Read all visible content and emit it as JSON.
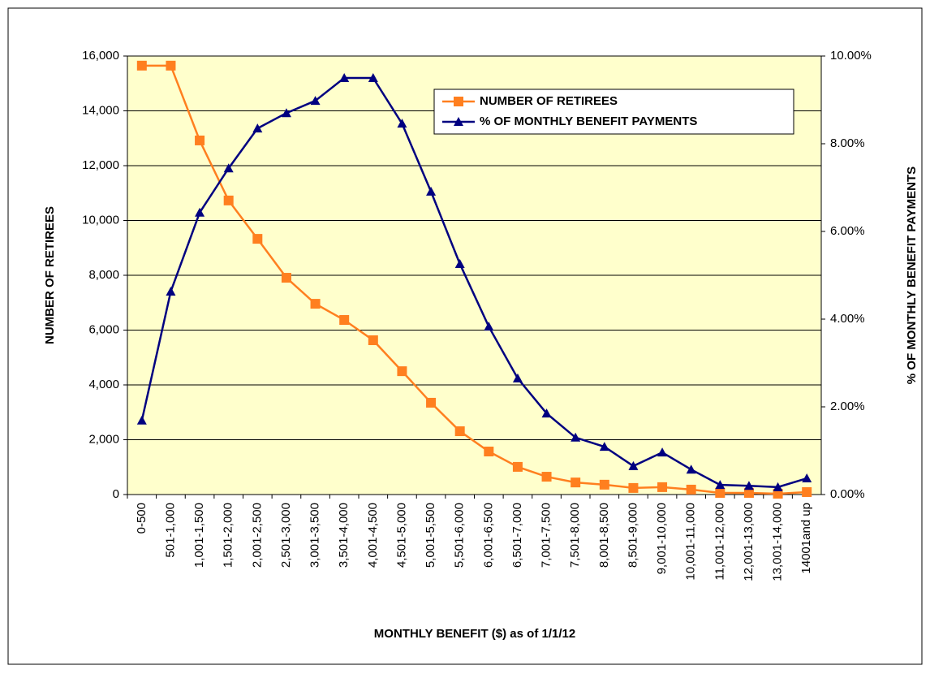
{
  "chart_data": {
    "type": "line",
    "x_label": "MONTHLY BENEFIT ($) as of 1/1/12",
    "y_label": "NUMBER OF RETIREES",
    "y2_label": "% OF MONTHLY BENEFIT PAYMENTS",
    "categories": [
      "0-500",
      "501-1,000",
      "1,001-1,500",
      "1,501-2,000",
      "2,001-2,500",
      "2,501-3,000",
      "3,001-3,500",
      "3,501-4,000",
      "4,001-4,500",
      "4,501-5,000",
      "5,001-5,500",
      "5,501-6,000",
      "6,001-6,500",
      "6,501-7,000",
      "7,001-7,500",
      "7,501-8,000",
      "8,001-8,500",
      "8,501-9,000",
      "9,001-10,000",
      "10,001-11,000",
      "11,001-12,000",
      "12,001-13,000",
      "13,001-14,000",
      "14001and up"
    ],
    "series": [
      {
        "name": "NUMBER OF RETIREES",
        "color": "#ff7f1f",
        "marker": "square",
        "values": [
          15650,
          15650,
          12920,
          10730,
          9330,
          7910,
          6960,
          6370,
          5630,
          4500,
          3350,
          2310,
          1570,
          1010,
          650,
          440,
          360,
          240,
          270,
          180,
          60,
          60,
          30,
          90
        ]
      },
      {
        "name": "% OF MONTHLY BENEFIT PAYMENTS",
        "color": "#000080",
        "marker": "triangle",
        "axis": "y2",
        "values": [
          1.69,
          4.63,
          6.43,
          7.44,
          8.35,
          8.7,
          8.98,
          9.5,
          9.5,
          8.46,
          6.91,
          5.26,
          3.83,
          2.65,
          1.85,
          1.3,
          1.09,
          0.65,
          0.96,
          0.57,
          0.22,
          0.2,
          0.17,
          0.37
        ]
      }
    ],
    "ylim": [
      0,
      16000
    ],
    "yticks": [
      0,
      {
        "value": 2000,
        "label": "2,000"
      },
      {
        "value": 4000,
        "label": "4,000"
      },
      {
        "value": 6000,
        "label": "6,000"
      },
      {
        "value": 8000,
        "label": "8,000"
      },
      {
        "value": 10000,
        "label": "10,000"
      },
      {
        "value": 12000,
        "label": "12,000"
      },
      {
        "value": 14000,
        "label": "14,000"
      },
      {
        "value": 16000,
        "label": "16,000"
      }
    ],
    "y2lim": [
      0,
      10
    ],
    "y2ticks": [
      {
        "value": 0,
        "label": "0.00%"
      },
      {
        "value": 2,
        "label": "2.00%"
      },
      {
        "value": 4,
        "label": "4.00%"
      },
      {
        "value": 6,
        "label": "6.00%"
      },
      {
        "value": 8,
        "label": "8.00%"
      },
      {
        "value": 10,
        "label": "10.00%"
      }
    ],
    "grid": true,
    "legend": "top-right"
  }
}
